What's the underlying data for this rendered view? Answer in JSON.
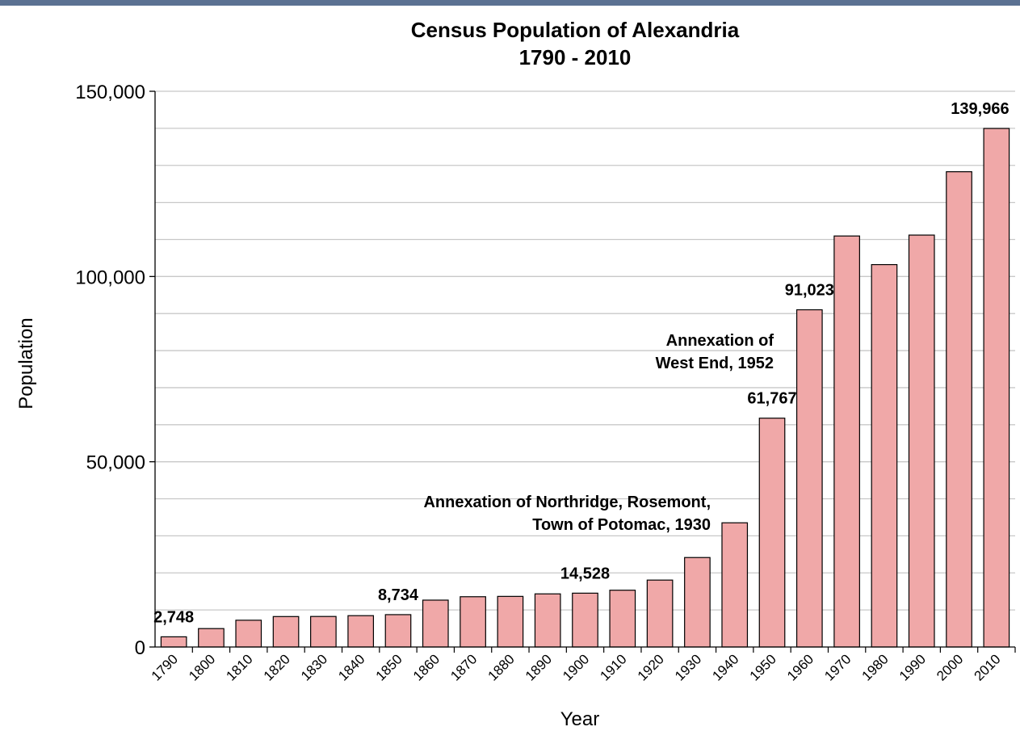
{
  "chart_data": {
    "type": "bar",
    "title": "Census Population of Alexandria",
    "subtitle": "1790 - 2010",
    "xlabel": "Year",
    "ylabel": "Population",
    "ylim": [
      0,
      150000
    ],
    "yticks": [
      0,
      50000,
      100000,
      150000
    ],
    "ytick_labels": [
      "0",
      "50,000",
      "100,000",
      "150,000"
    ],
    "grid": true,
    "bar_color": "#f0a8a8",
    "bar_edge_color": "#000000",
    "categories": [
      "1790",
      "1800",
      "1810",
      "1820",
      "1830",
      "1840",
      "1850",
      "1860",
      "1870",
      "1880",
      "1890",
      "1900",
      "1910",
      "1920",
      "1930",
      "1940",
      "1950",
      "1960",
      "1970",
      "1980",
      "1990",
      "2000",
      "2010"
    ],
    "values": [
      2748,
      4971,
      7227,
      8218,
      8241,
      8459,
      8734,
      12652,
      13570,
      13659,
      14339,
      14528,
      15329,
      18060,
      24149,
      33523,
      61767,
      91023,
      110938,
      103217,
      111183,
      128283,
      139966
    ],
    "data_labels": [
      {
        "category": "1790",
        "text": "2,748"
      },
      {
        "category": "1850",
        "text": "8,734"
      },
      {
        "category": "1900",
        "text": "14,528"
      },
      {
        "category": "1950",
        "text": "61,767"
      },
      {
        "category": "1960",
        "text": "91,023"
      },
      {
        "category": "2010",
        "text": "139,966"
      }
    ],
    "annotations": [
      {
        "lines": [
          "Annexation of Northridge, Rosemont,",
          "Town of  Potomac, 1930"
        ]
      },
      {
        "lines": [
          "Annexation of",
          "West End, 1952"
        ]
      }
    ]
  }
}
